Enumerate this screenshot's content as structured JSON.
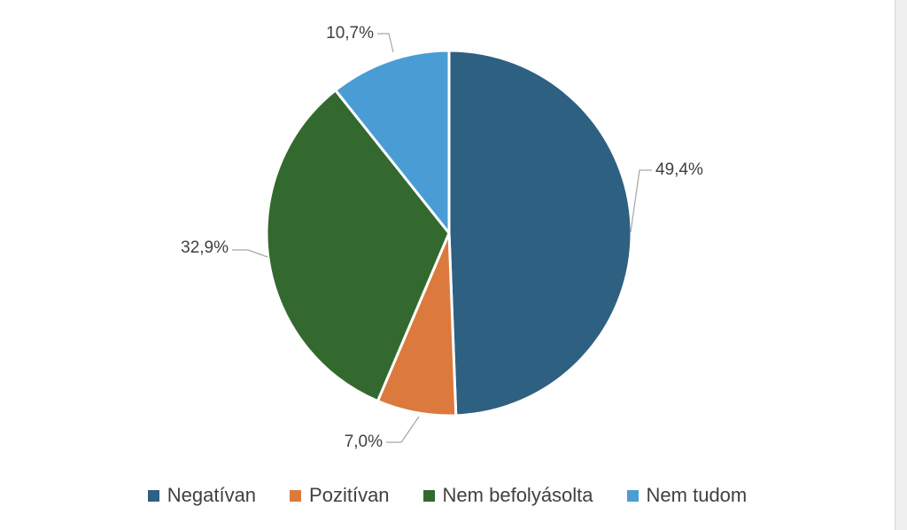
{
  "chart_data": {
    "type": "pie",
    "slices": [
      {
        "label": "Negatívan",
        "value": 49.4,
        "value_label": "49,4%",
        "color": "#2e6082"
      },
      {
        "label": "Pozitívan",
        "value": 7.0,
        "value_label": "7,0%",
        "color": "#dc7a3d"
      },
      {
        "label": "Nem befolyásolta",
        "value": 32.9,
        "value_label": "32,9%",
        "color": "#33692e"
      },
      {
        "label": "Nem tudom",
        "value": 10.7,
        "value_label": "10,7%",
        "color": "#4a9dd4"
      }
    ],
    "legend_position": "bottom",
    "start_angle": "12 o'clock",
    "direction": "clockwise"
  }
}
